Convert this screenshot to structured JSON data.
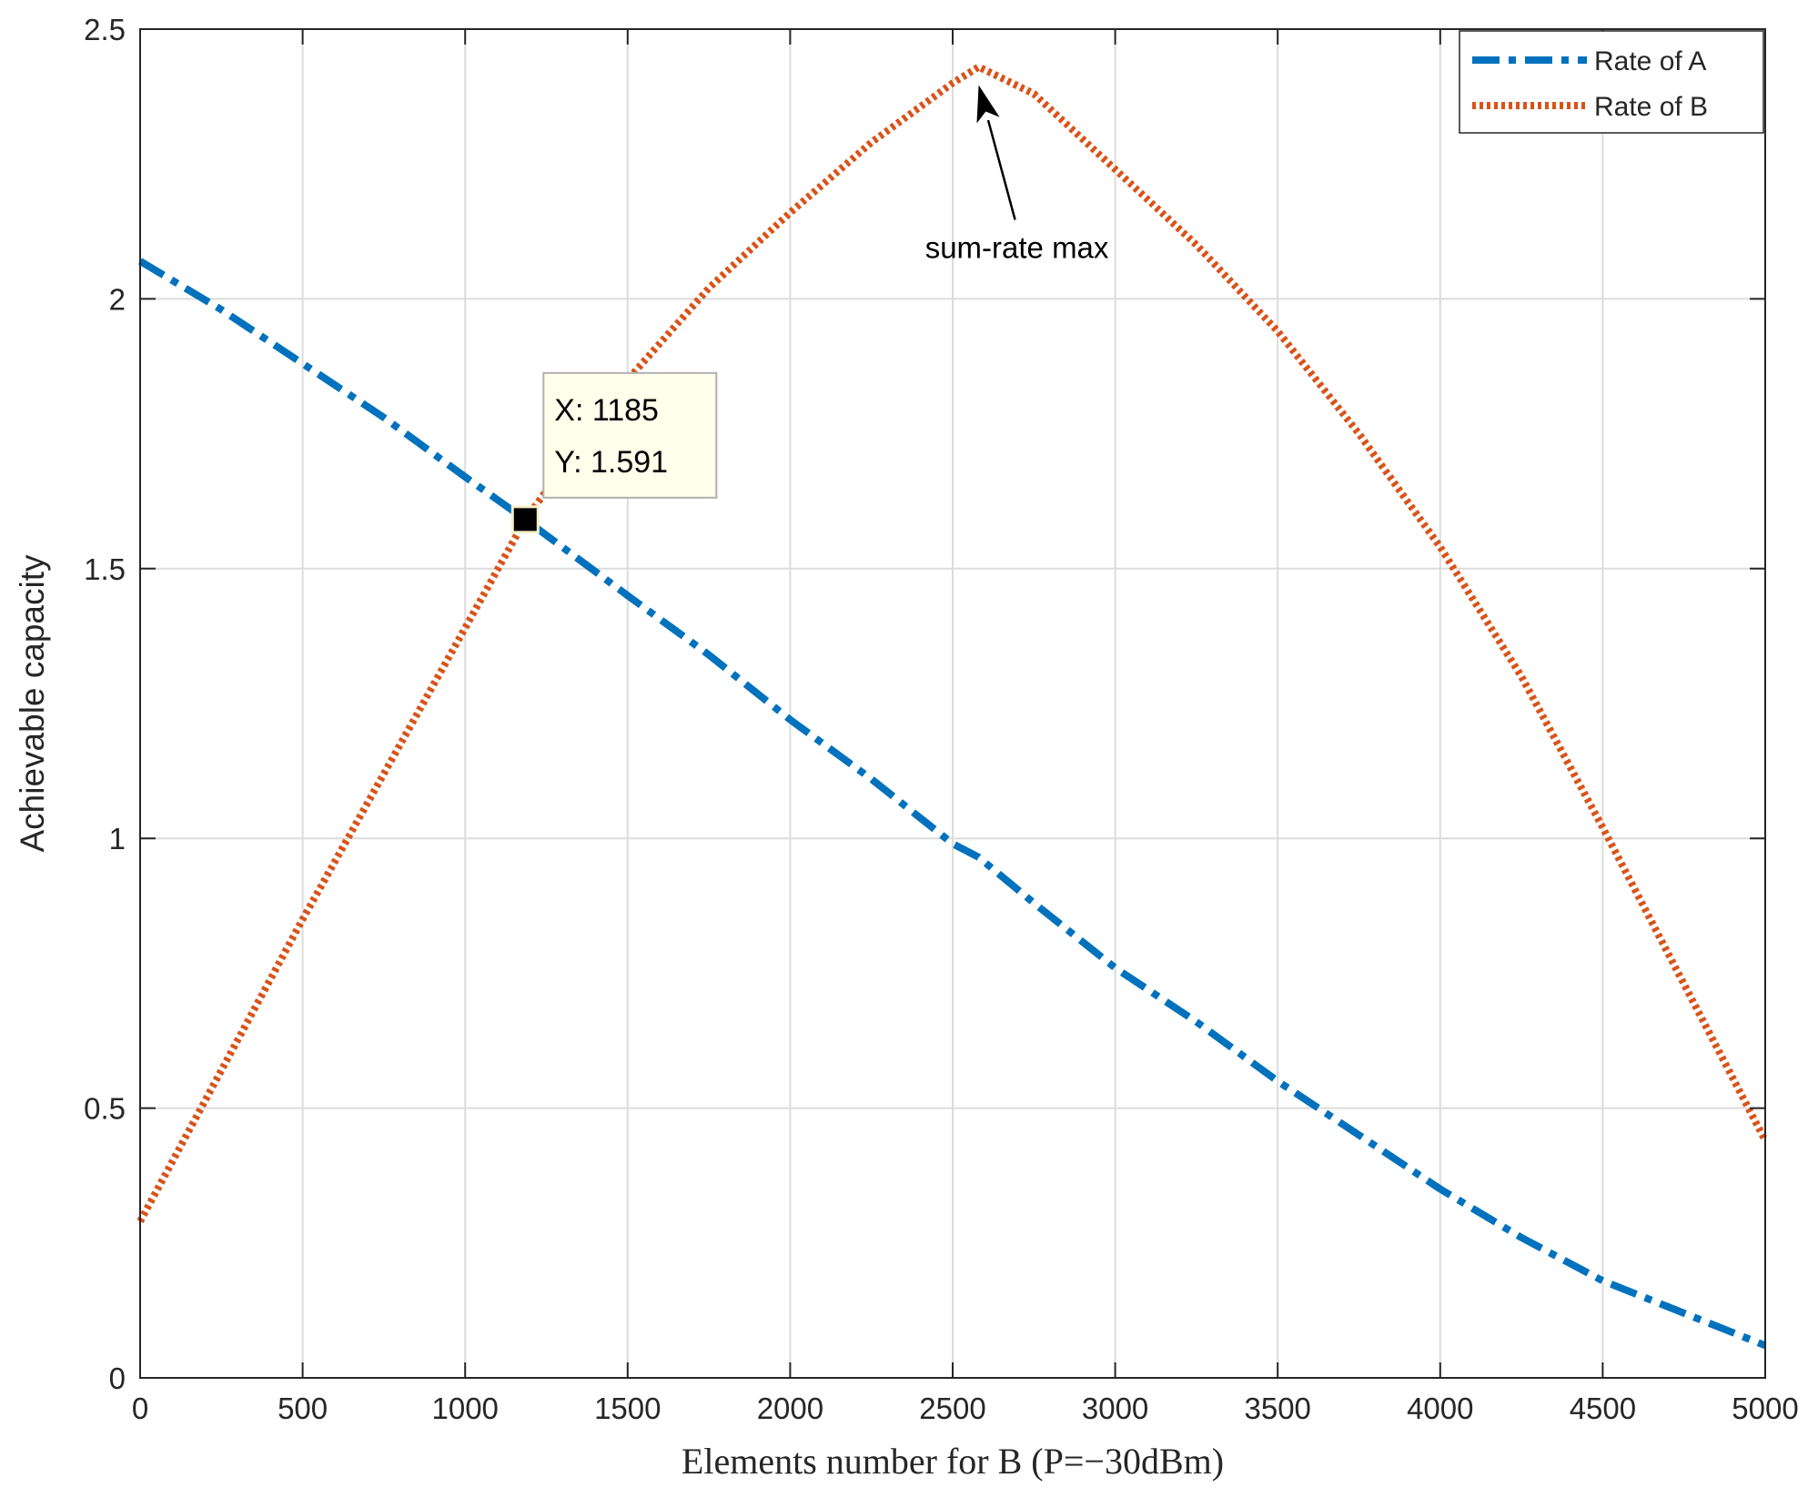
{
  "chart_data": {
    "type": "line",
    "title": "",
    "xlabel": "Elements number for B (P=−30dBm)",
    "ylabel": "Achievable capacity",
    "xlim": [
      0,
      5000
    ],
    "ylim": [
      0,
      2.5
    ],
    "x_ticks": [
      0,
      500,
      1000,
      1500,
      2000,
      2500,
      3000,
      3500,
      4000,
      4500,
      5000
    ],
    "x_tick_labels": [
      "0",
      "500",
      "1000",
      "1500",
      "2000",
      "2500",
      "3000",
      "3500",
      "4000",
      "4500",
      "5000"
    ],
    "y_ticks": [
      0,
      0.5,
      1,
      1.5,
      2,
      2.5
    ],
    "y_tick_labels": [
      "0",
      "0.5",
      "1",
      "1.5",
      "2",
      "2.5"
    ],
    "grid": true,
    "legend_position": "top-right",
    "x": [
      0,
      250,
      500,
      750,
      1000,
      1185,
      1500,
      1750,
      2000,
      2250,
      2500,
      2580,
      2750,
      3000,
      3250,
      3500,
      3750,
      4000,
      4250,
      4500,
      4750,
      5000
    ],
    "series": [
      {
        "name": "Rate of A",
        "color": "#0072BD",
        "style": "dash-dot",
        "values": [
          2.07,
          1.98,
          1.88,
          1.78,
          1.67,
          1.591,
          1.45,
          1.34,
          1.22,
          1.11,
          0.99,
          0.965,
          0.88,
          0.76,
          0.66,
          0.55,
          0.45,
          0.35,
          0.26,
          0.18,
          0.12,
          0.06
        ]
      },
      {
        "name": "Rate of B",
        "color": "#D95319",
        "style": "dotted",
        "values": [
          0.29,
          0.57,
          0.85,
          1.12,
          1.39,
          1.591,
          1.85,
          2.02,
          2.16,
          2.29,
          2.4,
          2.43,
          2.38,
          2.24,
          2.1,
          1.94,
          1.75,
          1.54,
          1.3,
          1.02,
          0.73,
          0.44
        ]
      }
    ],
    "annotations": [
      {
        "text": "sum-rate max",
        "x": 2580,
        "y": 2.43
      }
    ],
    "datatip": {
      "x": 1185,
      "y": 1.591,
      "label_x": "X: 1185",
      "label_y": "Y: 1.591"
    }
  }
}
